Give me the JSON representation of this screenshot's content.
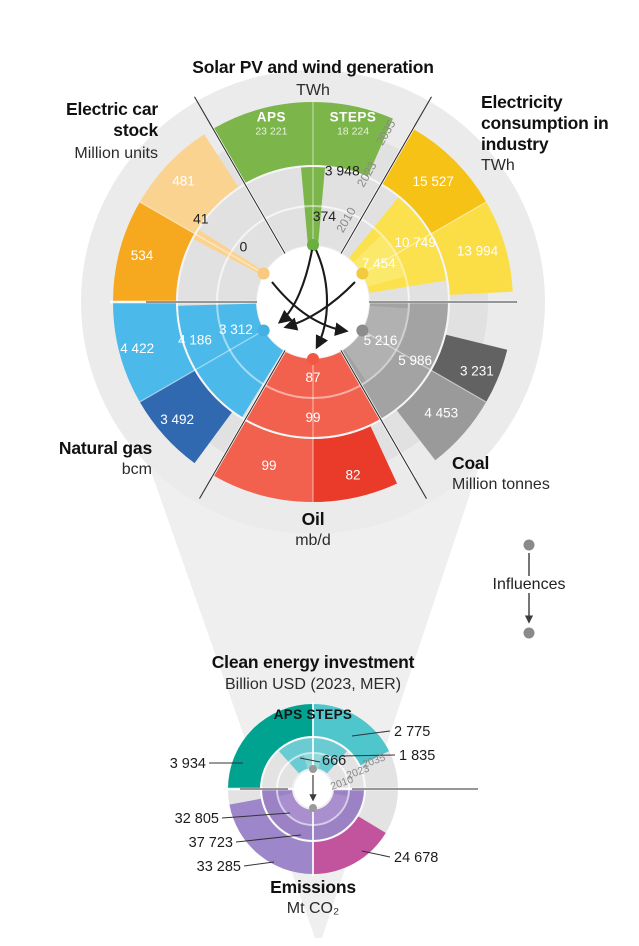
{
  "chart_data": {
    "type": "radial-bar",
    "main": {
      "year_rings": [
        "2010",
        "2023",
        "2035"
      ],
      "scenarios": {
        "aps": "APS",
        "steps": "STEPS"
      },
      "sectors": [
        {
          "id": "solar",
          "title": "Solar PV and wind generation",
          "unit": "TWh",
          "values": {
            "y2010": 374,
            "y2023": 3948,
            "aps": 23221,
            "steps": 18224
          },
          "display": {
            "y2010": "374",
            "y2023": "3 948",
            "aps": "23 221",
            "steps": "18 224"
          },
          "colors": {
            "y2010": "#7cb54a",
            "y2023": "#7cb54a",
            "aps": "#7cb54a",
            "steps": "#7cb54a",
            "dot": "#6aaf3f"
          }
        },
        {
          "id": "electricity_industry",
          "title": "Electricity consumption in industry",
          "unit": "TWh",
          "values": {
            "y2010": 7454,
            "y2023": 10749,
            "aps": 15527,
            "steps": 13994
          },
          "display": {
            "y2010": "7 454",
            "y2023": "10 749",
            "aps": "15 527",
            "steps": "13 994"
          },
          "colors": {
            "y2010": "#fbe96c",
            "y2023": "#fbe14d",
            "aps": "#f6c216",
            "steps": "#fbde45",
            "dot": "#f2ca3d"
          }
        },
        {
          "id": "coal",
          "title": "Coal",
          "unit": "Million tonnes",
          "values": {
            "y2010": 5216,
            "y2023": 5986,
            "aps": 3231,
            "steps": 4453
          },
          "display": {
            "y2010": "5 216",
            "y2023": "5 986",
            "aps": "3 231",
            "steps": "4 453"
          },
          "colors": {
            "y2010": "#b1b1b1",
            "y2023": "#a3a3a3",
            "aps": "#626262",
            "steps": "#9a9a9a",
            "dot": "#8c8c8c"
          }
        },
        {
          "id": "oil",
          "title": "Oil",
          "unit": "mb/d",
          "values": {
            "y2010": 87,
            "y2023": 99,
            "aps": 82,
            "steps": 99
          },
          "display": {
            "y2010": "87",
            "y2023": "99",
            "aps": "82",
            "steps": "99"
          },
          "colors": {
            "y2010": "#f2614e",
            "y2023": "#f2614e",
            "aps": "#e93a2a",
            "steps": "#f2614e",
            "dot": "#f05844"
          }
        },
        {
          "id": "natural_gas",
          "title": "Natural gas",
          "unit": "bcm",
          "values": {
            "y2010": 3312,
            "y2023": 4186,
            "aps": 3492,
            "steps": 4422
          },
          "display": {
            "y2010": "3 312",
            "y2023": "4 186",
            "aps": "3 492",
            "steps": "4 422"
          },
          "colors": {
            "y2010": "#4bb9e9",
            "y2023": "#4bb9e9",
            "aps": "#3169b1",
            "steps": "#4bb9e9",
            "dot": "#45b0e4"
          }
        },
        {
          "id": "electric_cars",
          "title": "Electric car stock",
          "unit": "Million units",
          "values": {
            "y2010": 0,
            "y2023": 41,
            "aps": 534,
            "steps": 481
          },
          "display": {
            "y2010": "0",
            "y2023": "41",
            "aps": "534",
            "steps": "481"
          },
          "colors": {
            "y2010": "#fbd391",
            "y2023": "#fbd391",
            "aps": "#f6a81f",
            "steps": "#fbd391",
            "dot": "#f9c97e"
          }
        }
      ],
      "influences": [
        {
          "from": "solar",
          "to": "natural_gas"
        },
        {
          "from": "solar",
          "to": "oil"
        },
        {
          "from": "electricity_industry",
          "to": "natural_gas"
        },
        {
          "from": "electric_cars",
          "to": "coal"
        }
      ]
    },
    "secondary": {
      "scenario_label": "APS STEPS",
      "year_rings": [
        "2010",
        "2023",
        "2035"
      ],
      "investment": {
        "title": "Clean energy investment",
        "unit": "Billion USD (2023, MER)",
        "values": {
          "y2010": 666,
          "y2023": 1835,
          "aps": 3934,
          "steps": 2775
        },
        "display": {
          "y2010": "666",
          "y2023": "1 835",
          "aps": "3 934",
          "steps": "2 775"
        },
        "colors": {
          "y2010": "#92d8db",
          "y2023": "#6accd2",
          "aps": "#00a290",
          "steps": "#4fc5cc"
        }
      },
      "emissions": {
        "title": "Emissions",
        "unit": "Mt CO₂",
        "values": {
          "y2010": 32805,
          "y2023": 37723,
          "aps": 24678,
          "steps": 33285
        },
        "display": {
          "y2010": "32 805",
          "y2023": "37 723",
          "aps": "24 678",
          "steps": "33 285"
        },
        "colors": {
          "y2010": "#a98fcd",
          "y2023": "#9a82c5",
          "aps": "#c2539d",
          "steps": "#9d86c9"
        }
      }
    }
  },
  "legend": {
    "label": "Influences"
  }
}
